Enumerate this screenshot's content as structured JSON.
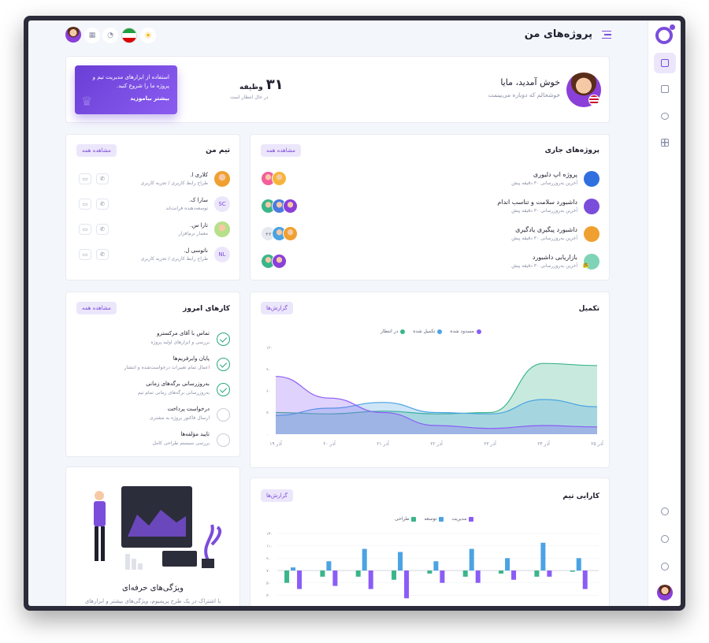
{
  "header": {
    "title": "پروژه‌های من"
  },
  "welcome": {
    "greeting": "خوش آمدید، مایا",
    "subtitle": "خوشحالم که دوباره می‌بینمت",
    "task_count": "۳۱",
    "task_label": "وظیفه",
    "task_status": "در حال انتظار است"
  },
  "promo": {
    "text": "استفاده از ابزارهای مدیریت تیم و پروژه ما را شروع کنید.",
    "link": "بیشتر بیاموزید"
  },
  "projects": {
    "title": "پروژه‌های جاری",
    "view_all": "مشاهده همه",
    "items": [
      {
        "name": "پروژه اپ دلیوری",
        "updated": "آخرین به‌روزرسانی ۳۰ دقیقه پیش"
      },
      {
        "name": "داشبورد سلامت و تناسب اندام",
        "updated": "آخرین به‌روزرسانی ۳۰ دقیقه پیش"
      },
      {
        "name": "داشبورد پیگیری یادگیری",
        "updated": "آخرین به‌روزرسانی ۳۰ دقیقه پیش",
        "extra": "+۲"
      },
      {
        "name": "بازاریابی داشبورد",
        "updated": "آخرین به‌روزرسانی ۳۰ دقیقه پیش",
        "tag": "JS"
      }
    ]
  },
  "team": {
    "title": "تیم من",
    "view_all": "مشاهده همه",
    "members": [
      {
        "name": "کلاری ا.",
        "role": "طراح رابط کاربری / تجربه کاربری"
      },
      {
        "name": "سارا ک.",
        "role": "توسعه‌دهنده فرانت‌اند",
        "initials": "SC"
      },
      {
        "name": "تارا س.",
        "role": "معمار نرم‌افزار"
      },
      {
        "name": "ناتوسی ل.",
        "role": "طراح رابط کاربری / تجربه کاربری",
        "initials": "NL"
      }
    ]
  },
  "completion": {
    "title": "تکمیل",
    "reports": "گزارش‌ها",
    "legend": [
      "مسدود شده",
      "تکمیل شده",
      "در انتظار"
    ],
    "colors": [
      "#8b5cf6",
      "#4ba3e3",
      "#3bb58a"
    ]
  },
  "chart_data": [
    {
      "type": "area",
      "x": [
        "آذر ۱۹",
        "آذر ۲۰",
        "آذر ۲۱",
        "آذر ۲۲",
        "آذر ۲۳",
        "آذر ۲۴",
        "آذر ۲۵"
      ],
      "y_ticks": [
        "۰",
        "۳۰",
        "۶۰",
        "۹۰",
        "۱۲۰"
      ],
      "ylim": [
        0,
        120
      ],
      "series": [
        {
          "name": "در انتظار",
          "values": [
            30,
            28,
            32,
            28,
            30,
            98,
            95
          ]
        },
        {
          "name": "تکمیل شده",
          "values": [
            26,
            36,
            44,
            30,
            28,
            48,
            38
          ]
        },
        {
          "name": "مسدود شده",
          "values": [
            80,
            50,
            30,
            12,
            8,
            12,
            10
          ]
        }
      ]
    },
    {
      "type": "bar",
      "title": "کارایی تیم",
      "categories": [
        "۱",
        "۲",
        "۳",
        "۴",
        "۵",
        "۶",
        "۷",
        "۸",
        "۹"
      ],
      "y_ticks": [
        "۱۰",
        "۳۰",
        "۵۰",
        "۷۰",
        "۹۰",
        "۱۱۰",
        "۱۳۰"
      ],
      "ylim": [
        -60,
        60
      ],
      "series": [
        {
          "name": "طراحی",
          "values": [
            -20,
            -10,
            -10,
            -15,
            -5,
            -10,
            -5,
            -10,
            -2
          ]
        },
        {
          "name": "توسعه",
          "values": [
            5,
            15,
            35,
            30,
            15,
            35,
            20,
            45,
            20
          ]
        },
        {
          "name": "مدیریت",
          "values": [
            -30,
            -25,
            -30,
            -45,
            -20,
            -20,
            -15,
            -10,
            -30
          ]
        }
      ],
      "reports": "گزارش‌ها",
      "colors": [
        "#3bb58a",
        "#4ba3e3",
        "#8b5cf6"
      ]
    }
  ],
  "tasks": {
    "title": "کارهای امروز",
    "view_all": "مشاهده همه",
    "items": [
      {
        "title": "تماس با آقای مرکسترو",
        "desc": "بررسی و ابزارهای اولیه پروژه",
        "done": true
      },
      {
        "title": "پایان وایرفریم‌ها",
        "desc": "اعمال تمام تغییرات درخواست‌شده و انتشار",
        "done": true
      },
      {
        "title": "به‌روزرسانی برگه‌های زمانی",
        "desc": "به‌روزرسانی برگه‌های زمانی تمام تیم",
        "done": true
      },
      {
        "title": "درخواست پرداخت",
        "desc": "ارسال فاکتور پروژه به مشتری",
        "done": false
      },
      {
        "title": "تایید مؤلفه‌ها",
        "desc": "بررسی سیستم طراحی کامل",
        "done": false
      }
    ]
  },
  "pro": {
    "title": "ویژگی‌های حرفه‌ای",
    "desc": "با اشتراک در یک طرح پریمیوم، ویژگی‌های بیشتر و ابزارهای"
  }
}
